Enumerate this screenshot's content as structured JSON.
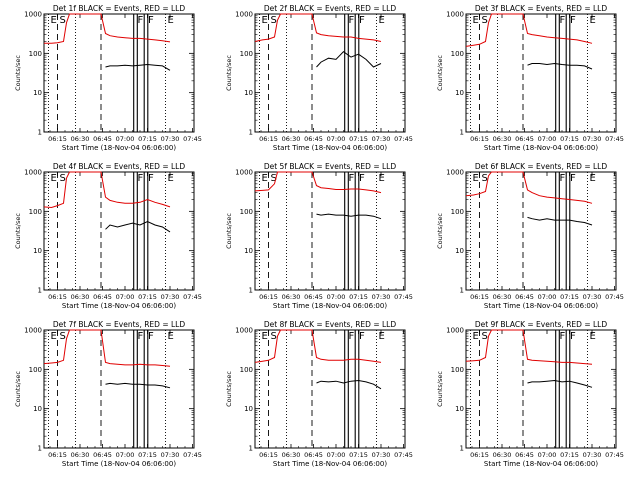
{
  "chart_data": {
    "type": "line",
    "scale": "log",
    "grid": false,
    "ylim": [
      1,
      1000
    ],
    "y_ticks": [
      "1",
      "10",
      "100",
      "1000"
    ],
    "x_ticks": [
      "06:15",
      "06:30",
      "06:45",
      "07:00",
      "07:15",
      "07:30",
      "07:45"
    ],
    "x_minutes": [
      15,
      30,
      45,
      60,
      75,
      90,
      105
    ],
    "xlim_minutes": [
      6,
      106
    ],
    "xlabel": "Start Time (18-Nov-04 06:06:00)",
    "ylabel": "Counts/sec",
    "marker_labels": [
      "E",
      "S",
      "F",
      "F",
      "E"
    ],
    "legend_colors": {
      "events": "#000000",
      "lld": "#e00000"
    },
    "panels": [
      {
        "title": "Det 1f BLACK = Events, RED = LLD",
        "lld_x": [
          6,
          11,
          15,
          19,
          21,
          23,
          44,
          47,
          50,
          55,
          60,
          65,
          70,
          75,
          80,
          85,
          90
        ],
        "lld_y": [
          180,
          180,
          185,
          200,
          600,
          1000,
          1000,
          320,
          280,
          260,
          250,
          240,
          240,
          230,
          220,
          210,
          195
        ],
        "events_x": [
          47,
          50,
          55,
          60,
          65,
          70,
          75,
          80,
          85,
          90
        ],
        "events_y": [
          45,
          48,
          48,
          50,
          48,
          50,
          52,
          50,
          48,
          37
        ]
      },
      {
        "title": "Det 2f BLACK = Events, RED = LLD",
        "lld_x": [
          6,
          11,
          15,
          19,
          21,
          23,
          44,
          47,
          50,
          55,
          60,
          65,
          70,
          75,
          80,
          85,
          90
        ],
        "lld_y": [
          200,
          220,
          230,
          260,
          700,
          1000,
          1000,
          330,
          300,
          280,
          270,
          260,
          260,
          240,
          230,
          220,
          200
        ],
        "events_x": [
          47,
          50,
          55,
          60,
          65,
          70,
          75,
          80,
          85,
          90
        ],
        "events_y": [
          45,
          60,
          75,
          70,
          110,
          80,
          95,
          70,
          45,
          55
        ]
      },
      {
        "title": "Det 3f BLACK = Events, RED = LLD",
        "lld_x": [
          6,
          11,
          15,
          19,
          21,
          23,
          44,
          47,
          50,
          55,
          60,
          65,
          70,
          75,
          80,
          85,
          90
        ],
        "lld_y": [
          150,
          160,
          170,
          200,
          600,
          1000,
          1000,
          320,
          300,
          280,
          260,
          250,
          240,
          230,
          220,
          200,
          180
        ],
        "events_x": [
          47,
          50,
          55,
          60,
          65,
          70,
          75,
          80,
          85,
          90
        ],
        "events_y": [
          50,
          55,
          55,
          52,
          55,
          52,
          50,
          50,
          48,
          40
        ]
      },
      {
        "title": "Det 4f BLACK = Events, RED = LLD",
        "lld_x": [
          6,
          11,
          15,
          19,
          21,
          23,
          44,
          47,
          50,
          55,
          60,
          65,
          70,
          75,
          80,
          85,
          90
        ],
        "lld_y": [
          130,
          125,
          140,
          160,
          700,
          1000,
          1000,
          230,
          190,
          170,
          160,
          160,
          170,
          200,
          170,
          150,
          130
        ],
        "events_x": [
          47,
          50,
          55,
          60,
          65,
          70,
          75,
          80,
          85,
          90
        ],
        "events_y": [
          35,
          45,
          40,
          45,
          50,
          45,
          55,
          45,
          40,
          30
        ]
      },
      {
        "title": "Det 5f BLACK = Events, RED = LLD",
        "lld_x": [
          6,
          11,
          15,
          19,
          21,
          23,
          44,
          47,
          50,
          55,
          60,
          65,
          70,
          75,
          80,
          85,
          90
        ],
        "lld_y": [
          330,
          340,
          350,
          500,
          1000,
          1000,
          1000,
          450,
          400,
          380,
          360,
          360,
          370,
          370,
          350,
          330,
          300
        ],
        "events_x": [
          47,
          50,
          55,
          60,
          65,
          70,
          75,
          80,
          85,
          90
        ],
        "events_y": [
          85,
          80,
          85,
          80,
          80,
          75,
          80,
          80,
          75,
          65
        ]
      },
      {
        "title": "Det 6f BLACK = Events, RED = LLD",
        "lld_x": [
          6,
          11,
          15,
          19,
          21,
          23,
          44,
          47,
          50,
          55,
          60,
          65,
          70,
          75,
          80,
          85,
          90
        ],
        "lld_y": [
          250,
          260,
          280,
          320,
          800,
          1000,
          1000,
          350,
          300,
          250,
          230,
          220,
          210,
          200,
          190,
          180,
          160
        ],
        "events_x": [
          47,
          50,
          55,
          60,
          65,
          70,
          75,
          80,
          85,
          90
        ],
        "events_y": [
          70,
          65,
          60,
          65,
          60,
          60,
          60,
          55,
          52,
          45
        ]
      },
      {
        "title": "Det 7f BLACK = Events, RED = LLD",
        "lld_x": [
          6,
          11,
          15,
          19,
          21,
          23,
          44,
          47,
          50,
          55,
          60,
          65,
          70,
          75,
          80,
          85,
          90
        ],
        "lld_y": [
          140,
          145,
          150,
          170,
          600,
          1000,
          1000,
          150,
          140,
          135,
          130,
          130,
          135,
          130,
          130,
          125,
          120
        ],
        "events_x": [
          47,
          50,
          55,
          60,
          65,
          70,
          75,
          80,
          85,
          90
        ],
        "events_y": [
          42,
          44,
          42,
          44,
          42,
          42,
          40,
          40,
          38,
          34
        ]
      },
      {
        "title": "Det 8f BLACK = Events, RED = LLD",
        "lld_x": [
          6,
          11,
          15,
          19,
          21,
          23,
          44,
          47,
          50,
          55,
          60,
          65,
          70,
          75,
          80,
          85,
          90
        ],
        "lld_y": [
          150,
          160,
          170,
          200,
          700,
          1000,
          1000,
          200,
          180,
          170,
          170,
          170,
          180,
          180,
          170,
          160,
          150
        ],
        "events_x": [
          47,
          50,
          55,
          60,
          65,
          70,
          75,
          80,
          85,
          90
        ],
        "events_y": [
          45,
          50,
          48,
          50,
          45,
          50,
          52,
          48,
          42,
          32
        ]
      },
      {
        "title": "Det 9f BLACK = Events, RED = LLD",
        "lld_x": [
          6,
          11,
          15,
          19,
          21,
          23,
          44,
          47,
          50,
          55,
          60,
          65,
          70,
          75,
          80,
          85,
          90
        ],
        "lld_y": [
          160,
          165,
          170,
          200,
          700,
          1000,
          1000,
          180,
          170,
          165,
          160,
          155,
          150,
          150,
          145,
          140,
          135
        ],
        "events_x": [
          47,
          50,
          55,
          60,
          65,
          70,
          75,
          80,
          85,
          90
        ],
        "events_y": [
          45,
          48,
          48,
          50,
          52,
          48,
          50,
          45,
          40,
          35
        ]
      }
    ],
    "markers": [
      {
        "label": "E",
        "x": 9,
        "style": "dotted"
      },
      {
        "label": "S",
        "x": 15,
        "style": "dashed"
      },
      {
        "label": "",
        "x": 27,
        "style": "dotted"
      },
      {
        "label": "",
        "x": 44,
        "style": "dashed"
      },
      {
        "label": "F",
        "x": 67,
        "style": "double"
      },
      {
        "label": "F",
        "x": 74,
        "style": "double"
      },
      {
        "label": "E",
        "x": 87,
        "style": "dotted"
      }
    ]
  }
}
